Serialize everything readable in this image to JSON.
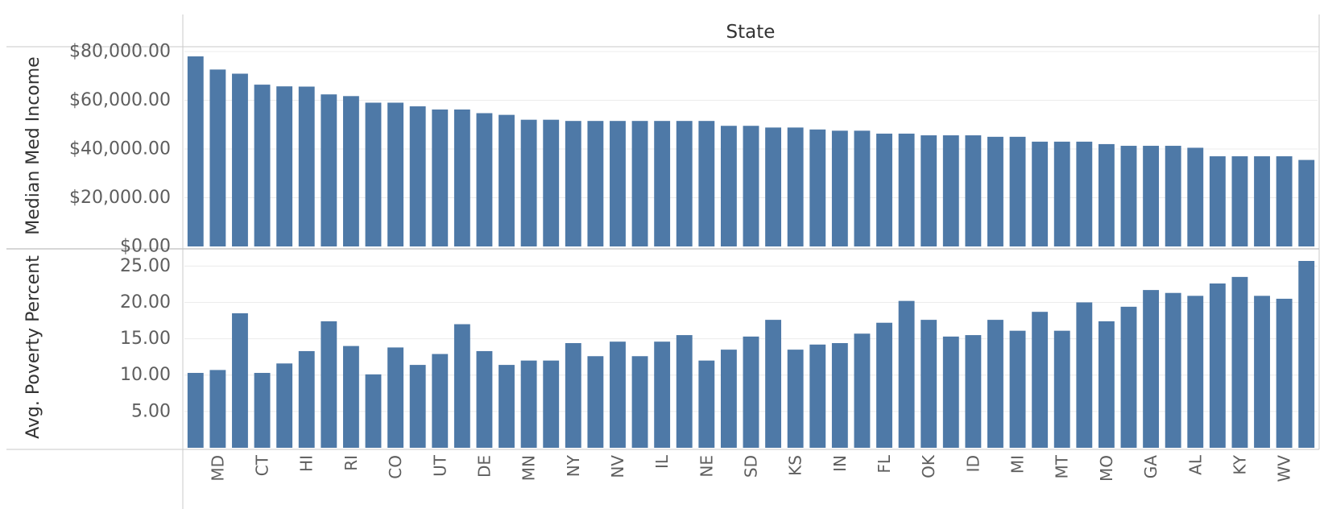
{
  "chart_data": {
    "type": "bar",
    "header": "State",
    "bar_color": "#4e79a7",
    "categories": [
      "",
      "MD",
      "",
      "CT",
      "",
      "HI",
      "",
      "RI",
      "",
      "CO",
      "",
      "UT",
      "",
      "DE",
      "",
      "MN",
      "",
      "NY",
      "",
      "NV",
      "",
      "IL",
      "",
      "NE",
      "",
      "SD",
      "",
      "KS",
      "",
      "IN",
      "",
      "FL",
      "",
      "OK",
      "",
      "ID",
      "",
      "MI",
      "",
      "MT",
      "",
      "MO",
      "",
      "GA",
      "",
      "AL",
      "",
      "KY",
      "",
      "WV",
      ""
    ],
    "panels": [
      {
        "name": "income",
        "ylabel": "Median Med Income",
        "yticks": [
          0,
          20000,
          40000,
          60000,
          80000
        ],
        "ytick_labels": [
          "$0.00",
          "$20,000.00",
          "$40,000.00",
          "$60,000.00",
          "$80,000.00"
        ],
        "ylim": [
          0,
          84000
        ],
        "values": [
          78000,
          72600,
          70900,
          66400,
          65700,
          65600,
          62400,
          61700,
          59000,
          59000,
          57500,
          56200,
          56200,
          54700,
          54000,
          52000,
          52000,
          51500,
          51500,
          51500,
          51500,
          51500,
          51500,
          51500,
          49500,
          49500,
          48800,
          48800,
          48000,
          47500,
          47500,
          46300,
          46300,
          45600,
          45600,
          45600,
          45000,
          45000,
          43000,
          43000,
          43000,
          42000,
          41300,
          41300,
          41300,
          40500,
          37000,
          37000,
          37000,
          37000,
          35500
        ]
      },
      {
        "name": "poverty",
        "ylabel": "Avg. Poverty Percent",
        "yticks": [
          5,
          10,
          15,
          20,
          25
        ],
        "ytick_labels": [
          "5.00",
          "10.00",
          "15.00",
          "20.00",
          "25.00"
        ],
        "ylim": [
          0,
          25.8
        ],
        "values": [
          10.3,
          10.7,
          18.5,
          10.3,
          11.6,
          13.3,
          17.4,
          14.0,
          10.1,
          13.8,
          11.4,
          12.9,
          17.0,
          13.3,
          11.4,
          12.0,
          12.0,
          14.4,
          12.6,
          14.6,
          12.6,
          14.6,
          15.5,
          12.0,
          13.5,
          15.3,
          17.6,
          13.5,
          14.2,
          14.4,
          15.7,
          17.2,
          20.2,
          17.6,
          15.3,
          15.5,
          17.6,
          16.1,
          18.7,
          16.1,
          20.0,
          17.4,
          19.4,
          21.7,
          21.3,
          20.9,
          22.6,
          23.5,
          20.9,
          20.5,
          25.7
        ]
      }
    ]
  }
}
